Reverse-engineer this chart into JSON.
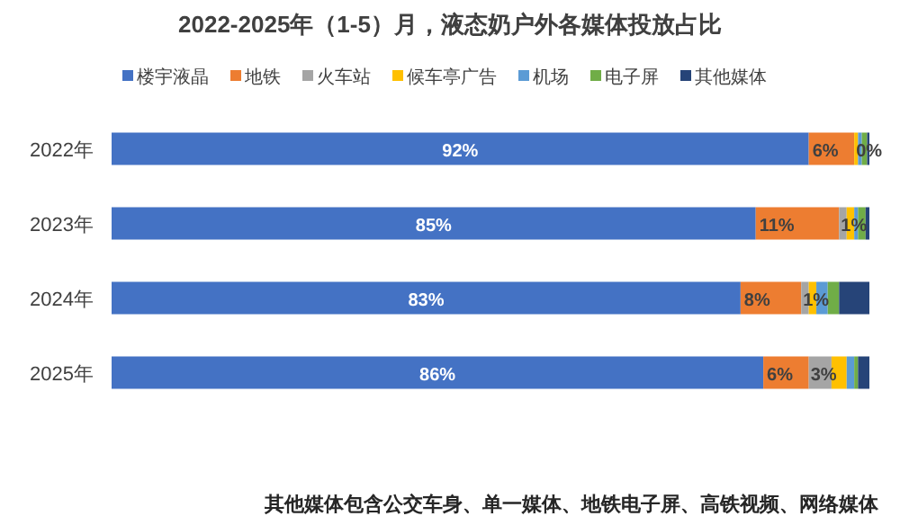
{
  "chart_data": {
    "type": "bar",
    "orientation": "horizontal",
    "stacked": true,
    "title": "2022-2025年（1-5）月，液态奶户外各媒体投放占比",
    "categories": [
      "2022年",
      "2023年",
      "2024年",
      "2025年"
    ],
    "xlim": [
      0,
      100
    ],
    "tick_labels": "y",
    "legend": "top",
    "grid": false,
    "series": [
      {
        "name": "楼宇液晶",
        "color": "#4472c4",
        "values": [
          92,
          85,
          83,
          86
        ],
        "value_labels": [
          "92%",
          "85%",
          "83%",
          "86%"
        ]
      },
      {
        "name": "地铁",
        "color": "#ed7d31",
        "values": [
          6,
          11,
          8,
          6
        ],
        "value_labels": [
          "6%",
          "11%",
          "8%",
          "6%"
        ]
      },
      {
        "name": "火车站",
        "color": "#a5a5a5",
        "values": [
          0,
          1,
          1,
          3
        ],
        "value_labels": [
          "0%",
          "1%",
          "1%",
          "3%"
        ]
      },
      {
        "name": "候车亭广告",
        "color": "#ffc000",
        "values": [
          0.5,
          1,
          1,
          2
        ],
        "value_labels": [
          null,
          null,
          null,
          null
        ]
      },
      {
        "name": "机场",
        "color": "#5b9bd5",
        "values": [
          0.5,
          0.5,
          1.5,
          1
        ],
        "value_labels": [
          null,
          null,
          null,
          null
        ]
      },
      {
        "name": "电子屏",
        "color": "#70ad47",
        "values": [
          0.7,
          1,
          1.5,
          0.5
        ],
        "value_labels": [
          null,
          null,
          null,
          null
        ]
      },
      {
        "name": "其他媒体",
        "color": "#264478",
        "values": [
          0.3,
          0.5,
          4,
          1.5
        ],
        "value_labels": [
          null,
          null,
          null,
          null
        ]
      }
    ],
    "annotations": [
      "其他媒体包含公交车身、单一媒体、地铁电子屏、高铁视频、网络媒体"
    ]
  }
}
